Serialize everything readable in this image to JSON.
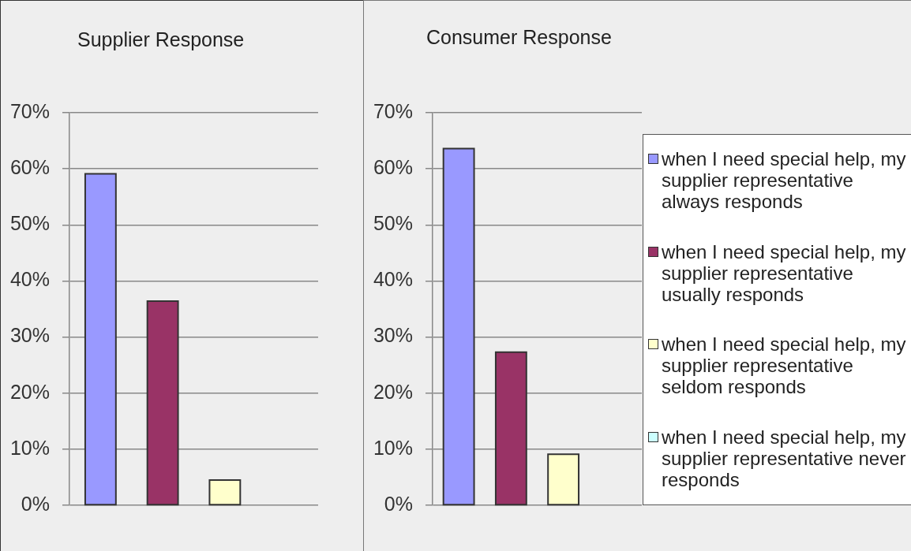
{
  "chart_data": [
    {
      "type": "bar",
      "title": "Supplier Response",
      "categories": [
        null
      ],
      "series": [
        {
          "color": "#9999ff",
          "values": [
            59.1
          ]
        },
        {
          "color": "#993366",
          "values": [
            36.4
          ]
        },
        {
          "color": "#ffffcc",
          "values": [
            4.5
          ]
        },
        {
          "color": "#ccffff",
          "values": [
            0
          ]
        }
      ],
      "ylim": [
        0,
        70
      ],
      "yticks": [
        {
          "value": 0,
          "label": "0%"
        },
        {
          "value": 10,
          "label": "10%"
        },
        {
          "value": 20,
          "label": "20%"
        },
        {
          "value": 30,
          "label": "30%"
        },
        {
          "value": 40,
          "label": "40%"
        },
        {
          "value": 50,
          "label": "50%"
        },
        {
          "value": 60,
          "label": "60%"
        },
        {
          "value": 70,
          "label": "70%"
        }
      ],
      "grid": "y"
    },
    {
      "type": "bar",
      "title": "Consumer Response",
      "categories": [
        null
      ],
      "series": [
        {
          "name": "when I need special help, my supplier representative always responds",
          "color": "#9999ff",
          "values": [
            63.6
          ]
        },
        {
          "name": "when I need special help, my supplier representative usually responds",
          "color": "#993366",
          "values": [
            27.3
          ]
        },
        {
          "name": "when I need special help, my supplier representative seldom responds",
          "color": "#ffffcc",
          "values": [
            9.1
          ]
        },
        {
          "name": "when I need special help, my supplier representative never responds",
          "color": "#ccffff",
          "values": [
            0
          ]
        }
      ],
      "ylim": [
        0,
        70
      ],
      "yticks": [
        {
          "value": 0,
          "label": "0%"
        },
        {
          "value": 10,
          "label": "10%"
        },
        {
          "value": 20,
          "label": "20%"
        },
        {
          "value": 30,
          "label": "30%"
        },
        {
          "value": 40,
          "label": "40%"
        },
        {
          "value": 50,
          "label": "50%"
        },
        {
          "value": 60,
          "label": "60%"
        },
        {
          "value": 70,
          "label": "70%"
        }
      ],
      "grid": "y",
      "legend": "right"
    }
  ]
}
